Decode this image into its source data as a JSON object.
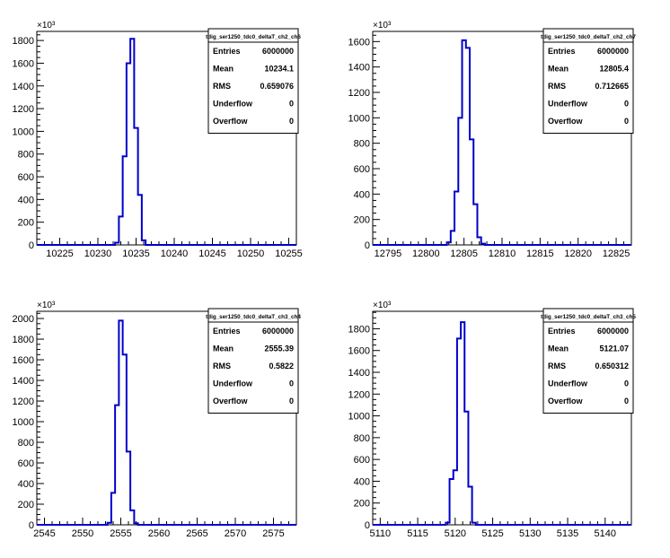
{
  "chart_data": [
    {
      "type": "histogram",
      "title": "tdig_ser1250_tdc0_deltaT_ch2_ch6",
      "exponent_label": "×10³",
      "xlim": [
        10222,
        10256
      ],
      "ylim": [
        0,
        1880
      ],
      "x_ticks": [
        "10225",
        "10230",
        "10235",
        "10240",
        "10245",
        "10250",
        "10255"
      ],
      "y_ticks": [
        "0",
        "200",
        "400",
        "600",
        "800",
        "1000",
        "1200",
        "1400",
        "1600",
        "1800"
      ],
      "bin_width": 0.5,
      "bins": [
        {
          "x": 10232.5,
          "y": 20
        },
        {
          "x": 10233.0,
          "y": 250
        },
        {
          "x": 10233.5,
          "y": 780
        },
        {
          "x": 10234.0,
          "y": 1600
        },
        {
          "x": 10234.5,
          "y": 1815
        },
        {
          "x": 10235.0,
          "y": 1030
        },
        {
          "x": 10235.5,
          "y": 440
        },
        {
          "x": 10236.0,
          "y": 40
        }
      ],
      "stats": [
        {
          "label": "Entries",
          "value": "6000000"
        },
        {
          "label": "Mean",
          "value": "10234.1"
        },
        {
          "label": "RMS",
          "value": "0.659076"
        },
        {
          "label": "Underflow",
          "value": "0"
        },
        {
          "label": "Overflow",
          "value": "0"
        }
      ]
    },
    {
      "type": "histogram",
      "title": "tdig_ser1250_tdc0_deltaT_ch2_ch7",
      "exponent_label": "×10³",
      "xlim": [
        12793,
        12827
      ],
      "ylim": [
        0,
        1680
      ],
      "x_ticks": [
        "12795",
        "12800",
        "12805",
        "12810",
        "12815",
        "12820",
        "12825"
      ],
      "y_ticks": [
        "0",
        "200",
        "400",
        "600",
        "800",
        "1000",
        "1200",
        "1400",
        "1600"
      ],
      "bin_width": 0.5,
      "bins": [
        {
          "x": 12803.0,
          "y": 20
        },
        {
          "x": 12803.5,
          "y": 110
        },
        {
          "x": 12804.0,
          "y": 420
        },
        {
          "x": 12804.5,
          "y": 1000
        },
        {
          "x": 12805.0,
          "y": 1610
        },
        {
          "x": 12805.5,
          "y": 1550
        },
        {
          "x": 12806.0,
          "y": 830
        },
        {
          "x": 12806.5,
          "y": 320
        },
        {
          "x": 12807.0,
          "y": 60
        },
        {
          "x": 12807.5,
          "y": 10
        }
      ],
      "stats": [
        {
          "label": "Entries",
          "value": "6000000"
        },
        {
          "label": "Mean",
          "value": "12805.4"
        },
        {
          "label": "RMS",
          "value": "0.712665"
        },
        {
          "label": "Underflow",
          "value": "0"
        },
        {
          "label": "Overflow",
          "value": "0"
        }
      ]
    },
    {
      "type": "histogram",
      "title": "tdig_ser1250_tdc0_deltaT_ch3_ch4",
      "exponent_label": "×10³",
      "xlim": [
        2544,
        2578
      ],
      "ylim": [
        0,
        2070
      ],
      "x_ticks": [
        "2545",
        "2550",
        "2555",
        "2560",
        "2565",
        "2570",
        "2575"
      ],
      "y_ticks": [
        "0",
        "200",
        "400",
        "600",
        "800",
        "1000",
        "1200",
        "1400",
        "1600",
        "1800",
        "2000"
      ],
      "bin_width": 0.5,
      "bins": [
        {
          "x": 2553.5,
          "y": 20
        },
        {
          "x": 2554.0,
          "y": 310
        },
        {
          "x": 2554.5,
          "y": 1160
        },
        {
          "x": 2555.0,
          "y": 1980
        },
        {
          "x": 2555.5,
          "y": 1650
        },
        {
          "x": 2556.0,
          "y": 710
        },
        {
          "x": 2556.5,
          "y": 140
        },
        {
          "x": 2557.0,
          "y": 15
        }
      ],
      "stats": [
        {
          "label": "Entries",
          "value": "6000000"
        },
        {
          "label": "Mean",
          "value": "2555.39"
        },
        {
          "label": "RMS",
          "value": "0.5822"
        },
        {
          "label": "Underflow",
          "value": "0"
        },
        {
          "label": "Overflow",
          "value": "0"
        }
      ]
    },
    {
      "type": "histogram",
      "title": "tdig_ser1250_tdc0_deltaT_ch3_ch5",
      "exponent_label": "×10³",
      "xlim": [
        5109,
        5143.5
      ],
      "ylim": [
        0,
        1960
      ],
      "x_ticks": [
        "5110",
        "5115",
        "5120",
        "5125",
        "5130",
        "5135",
        "5140"
      ],
      "y_ticks": [
        "0",
        "200",
        "400",
        "600",
        "800",
        "1000",
        "1200",
        "1400",
        "1600",
        "1800"
      ],
      "bin_width": 0.5,
      "bins": [
        {
          "x": 5119.0,
          "y": 20
        },
        {
          "x": 5119.5,
          "y": 420
        },
        {
          "x": 5120.0,
          "y": 500
        },
        {
          "x": 5120.5,
          "y": 1710
        },
        {
          "x": 5121.0,
          "y": 1860
        },
        {
          "x": 5121.5,
          "y": 1040
        },
        {
          "x": 5122.0,
          "y": 350
        },
        {
          "x": 5122.5,
          "y": 20
        }
      ],
      "stats": [
        {
          "label": "Entries",
          "value": "6000000"
        },
        {
          "label": "Mean",
          "value": "5121.07"
        },
        {
          "label": "RMS",
          "value": "0.650312"
        },
        {
          "label": "Underflow",
          "value": "0"
        },
        {
          "label": "Overflow",
          "value": "0"
        }
      ]
    }
  ],
  "style": {
    "line_color": "#0000cc",
    "axis_color": "#000000",
    "background": "#ffffff"
  }
}
